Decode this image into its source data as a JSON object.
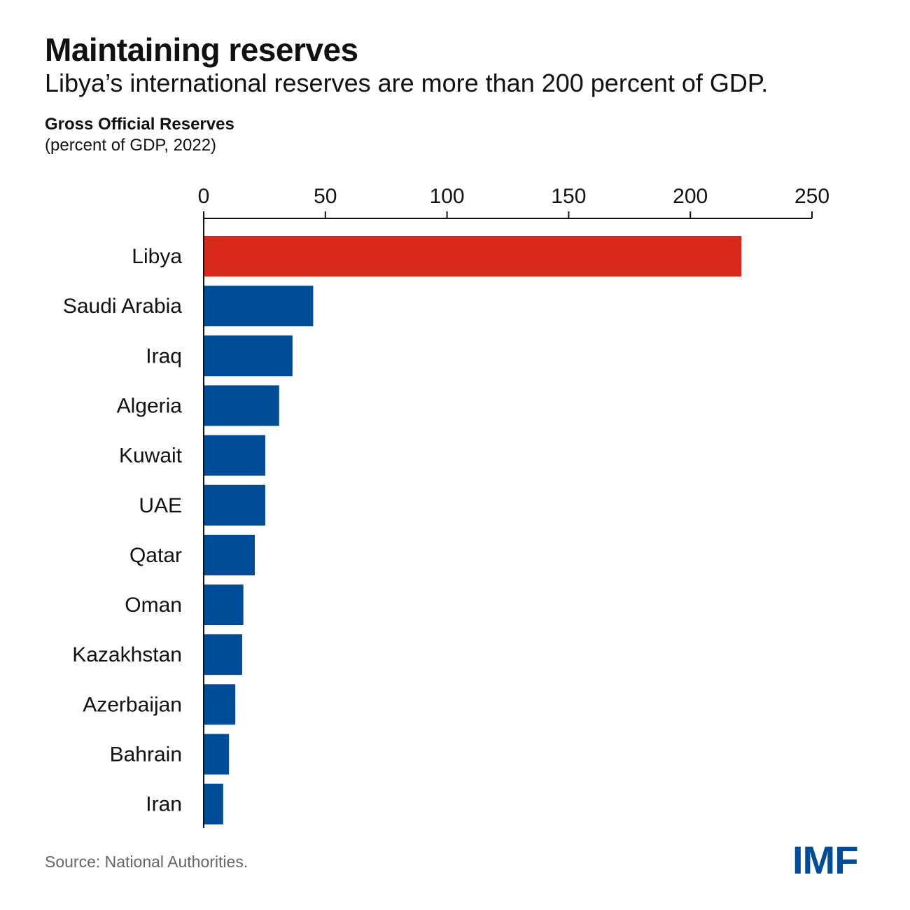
{
  "title": "Maintaining reserves",
  "subtitle": "Libya’s international reserves are more than 200 percent of GDP.",
  "chart_heading": "Gross Official Reserves",
  "chart_unit": "(percent of GDP, 2022)",
  "source": "Source: National Authorities.",
  "logo_text": "IMF",
  "colors": {
    "highlight": "#D9291C",
    "primary": "#004C97",
    "axis": "#111111",
    "logo": "#004C97"
  },
  "chart_data": {
    "type": "bar",
    "orientation": "horizontal",
    "title": "Gross Official Reserves",
    "xlabel": "(percent of GDP, 2022)",
    "ylabel": "",
    "xlim": [
      0,
      250
    ],
    "xticks": [
      0,
      50,
      100,
      150,
      200,
      250
    ],
    "axis_position": "top",
    "grid": false,
    "categories": [
      "Libya",
      "Saudi Arabia",
      "Iraq",
      "Algeria",
      "Kuwait",
      "UAE",
      "Qatar",
      "Oman",
      "Kazakhstan",
      "Azerbaijan",
      "Bahrain",
      "Iran"
    ],
    "values": [
      221,
      45,
      36.5,
      31,
      25.3,
      25.3,
      21,
      16.3,
      15.8,
      13,
      10.4,
      8
    ],
    "highlight": [
      "Libya"
    ]
  }
}
